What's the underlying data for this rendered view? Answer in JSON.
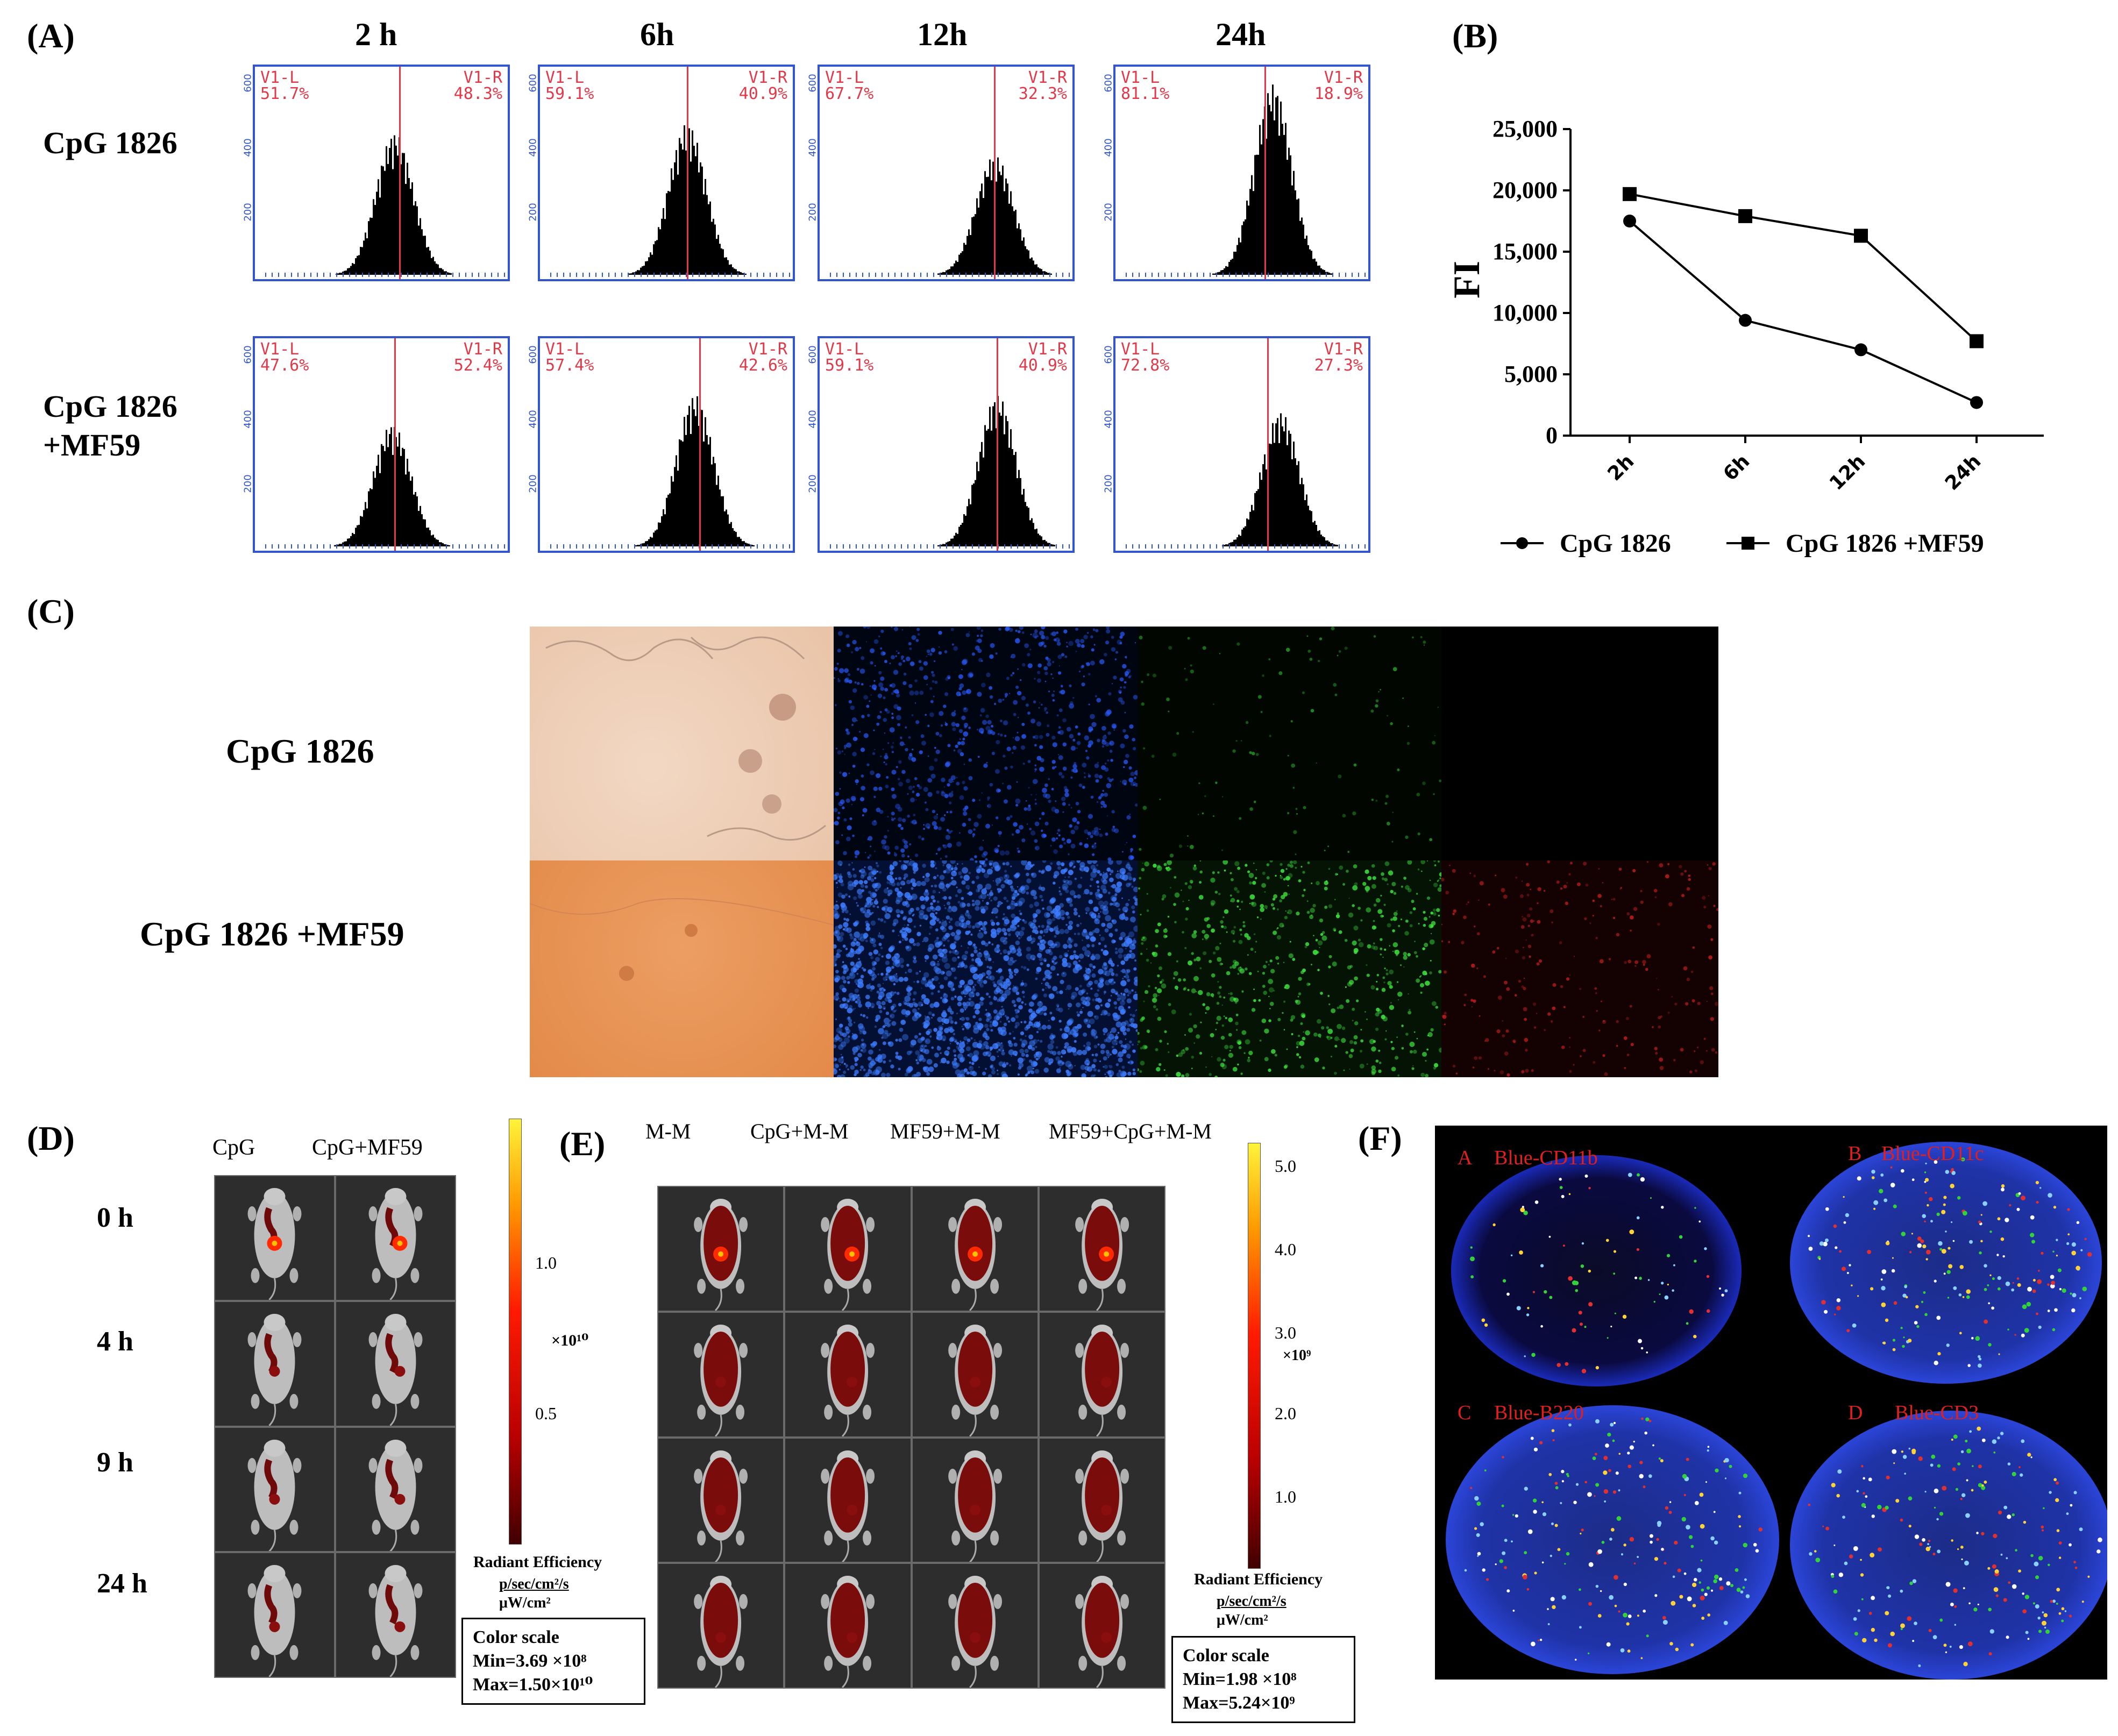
{
  "panelA": {
    "label": "(A)",
    "times": [
      "2 h",
      "6h",
      "12h",
      "24h"
    ],
    "rows": [
      {
        "name": "CpG 1826",
        "pcts": [
          [
            "V1-L\n51.7%",
            "V1-R\n48.3%"
          ],
          [
            "V1-L\n59.1%",
            "V1-R\n40.9%"
          ],
          [
            "V1-L\n67.7%",
            "V1-R\n32.3%"
          ],
          [
            "V1-L\n81.1%",
            "V1-R\n18.9%"
          ]
        ]
      },
      {
        "name": "CpG 1826\n+MF59",
        "pcts": [
          [
            "V1-L\n47.6%",
            "V1-R\n52.4%"
          ],
          [
            "V1-L\n57.4%",
            "V1-R\n42.6%"
          ],
          [
            "V1-L\n59.1%",
            "V1-R\n40.9%"
          ],
          [
            "V1-L\n72.8%",
            "V1-R\n27.3%"
          ]
        ]
      }
    ],
    "y_ticks": [
      "600",
      "400",
      "200"
    ]
  },
  "panelB": {
    "label": "(B)",
    "chart_data": {
      "type": "line",
      "categories": [
        "2h",
        "6h",
        "12h",
        "24h"
      ],
      "ylabel": "FI",
      "ylim": [
        0,
        25000
      ],
      "yticks": [
        "0",
        "5,000",
        "10,000",
        "15,000",
        "20,000",
        "25,000"
      ],
      "series": [
        {
          "name": "CpG 1826",
          "marker": "circle",
          "values": [
            17500,
            9400,
            7000,
            2700
          ]
        },
        {
          "name": "CpG 1826 +MF59",
          "marker": "square",
          "values": [
            19700,
            17900,
            16300,
            7700
          ]
        }
      ]
    }
  },
  "panelC": {
    "label": "(C)",
    "rows": [
      "CpG 1826",
      "CpG 1826 +MF59"
    ]
  },
  "panelD": {
    "label": "(D)",
    "columns": [
      "CpG",
      "CpG+MF59"
    ],
    "rows": [
      "0 h",
      "4 h",
      "9 h",
      "24 h"
    ],
    "scale_ticks": [
      "1.0",
      "0.5"
    ],
    "scale_unit": "×10¹⁰",
    "radiant_title": "Radiant Efficiency",
    "radiant_unit_top": "p/sec/cm²/s",
    "radiant_unit_bottom": "μW/cm²",
    "color_scale": "Color scale",
    "min": "Min=3.69 ×10⁸",
    "max": "Max=1.50×10¹⁰"
  },
  "panelE": {
    "label": "(E)",
    "columns": [
      "M-M",
      "CpG+M-M",
      "MF59+M-M",
      "MF59+CpG+M-M"
    ],
    "scale_ticks": [
      "5.0",
      "4.0",
      "3.0",
      "2.0",
      "1.0"
    ],
    "scale_unit": "×10⁹",
    "radiant_title": "Radiant Efficiency",
    "radiant_unit_top": "p/sec/cm²/s",
    "radiant_unit_bottom": "μW/cm²",
    "color_scale": "Color scale",
    "min": "Min=1.98 ×10⁸",
    "max": "Max=5.24×10⁹"
  },
  "panelF": {
    "label": "(F)",
    "quadrants": [
      {
        "letter": "A",
        "stain": "Blue-CD11b"
      },
      {
        "letter": "B",
        "stain": "Blue-CD11c"
      },
      {
        "letter": "C",
        "stain": "Blue-B220"
      },
      {
        "letter": "D",
        "stain": "Blue-CD3"
      }
    ]
  }
}
